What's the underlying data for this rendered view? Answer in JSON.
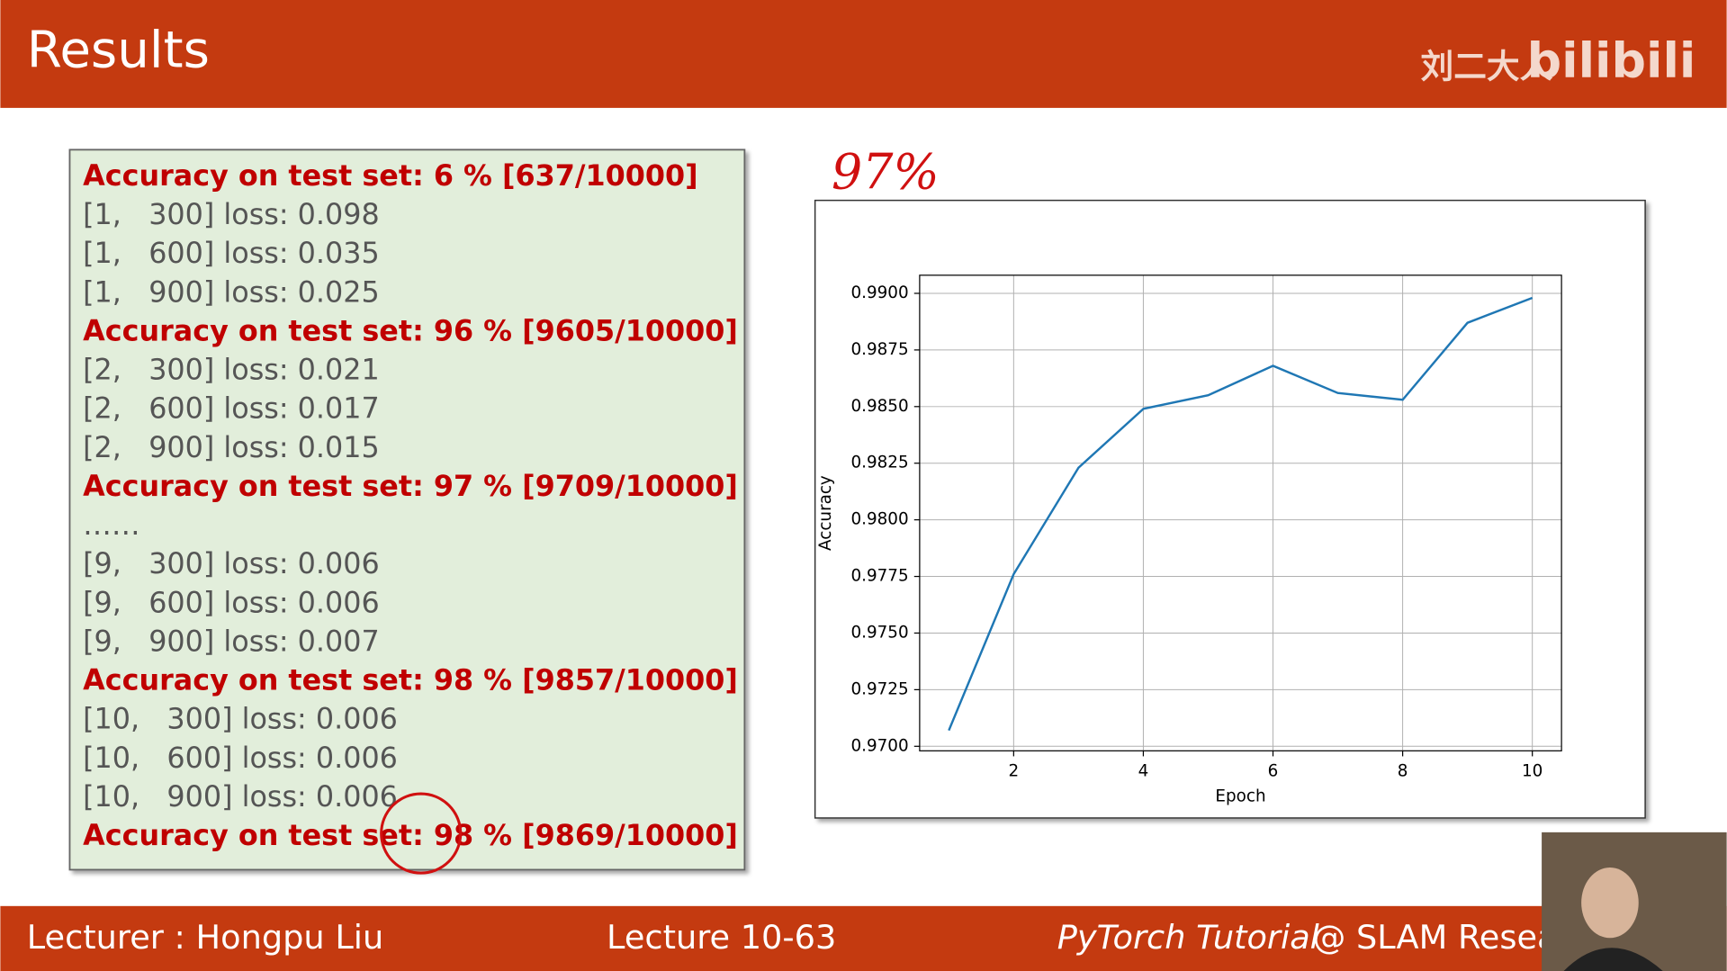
{
  "header": {
    "title": "Results",
    "author": "刘二大人",
    "logo": "bilibili"
  },
  "log": {
    "lines": [
      {
        "text": "Accuracy on test set: 6 % [637/10000]",
        "highlight": true
      },
      {
        "text": "[1,   300] loss: 0.098",
        "highlight": false
      },
      {
        "text": "[1,   600] loss: 0.035",
        "highlight": false
      },
      {
        "text": "[1,   900] loss: 0.025",
        "highlight": false
      },
      {
        "text": "Accuracy on test set: 96 % [9605/10000]",
        "highlight": true
      },
      {
        "text": "[2,   300] loss: 0.021",
        "highlight": false
      },
      {
        "text": "[2,   600] loss: 0.017",
        "highlight": false
      },
      {
        "text": "[2,   900] loss: 0.015",
        "highlight": false
      },
      {
        "text": "Accuracy on test set: 97 % [9709/10000]",
        "highlight": true
      },
      {
        "text": "……",
        "highlight": false
      },
      {
        "text": "[9,   300] loss: 0.006",
        "highlight": false
      },
      {
        "text": "[9,   600] loss: 0.006",
        "highlight": false
      },
      {
        "text": "[9,   900] loss: 0.007",
        "highlight": false
      },
      {
        "text": "Accuracy on test set: 98 % [9857/10000]",
        "highlight": true
      },
      {
        "text": "[10,   300] loss: 0.006",
        "highlight": false
      },
      {
        "text": "[10,   600] loss: 0.006",
        "highlight": false
      },
      {
        "text": "[10,   900] loss: 0.006",
        "highlight": false
      },
      {
        "text": "Accuracy on test set: 98 % [9869/10000]",
        "highlight": true
      }
    ]
  },
  "chart_data": {
    "type": "line",
    "annotation": "97%",
    "x_label": "Epoch",
    "y_label": "Accuracy",
    "x": [
      1,
      2,
      3,
      4,
      5,
      6,
      7,
      8,
      9,
      10
    ],
    "series": [
      {
        "color": "#1f77b4",
        "values": [
          0.9707,
          0.9776,
          0.9823,
          0.9849,
          0.9855,
          0.9868,
          0.9856,
          0.9853,
          0.9887,
          0.9898
        ]
      }
    ],
    "xlim": [
      0.55,
      10.45
    ],
    "ylim": [
      0.9698,
      0.9908
    ],
    "xticks": [
      2,
      4,
      6,
      8,
      10
    ],
    "yticks": [
      {
        "value": 0.97,
        "label": "0.9700"
      },
      {
        "value": 0.9725,
        "label": "0.9725"
      },
      {
        "value": 0.975,
        "label": "0.9750"
      },
      {
        "value": 0.9775,
        "label": "0.9775"
      },
      {
        "value": 0.98,
        "label": "0.9800"
      },
      {
        "value": 0.9825,
        "label": "0.9825"
      },
      {
        "value": 0.985,
        "label": "0.9850"
      },
      {
        "value": 0.9875,
        "label": "0.9875"
      },
      {
        "value": 0.99,
        "label": "0.9900"
      }
    ],
    "grid": true
  },
  "footer": {
    "lecturer": "Lecturer : Hongpu Liu",
    "lecture": "Lecture 10-63",
    "course": "PyTorch Tutorial",
    "group": "@ SLAM Resea"
  }
}
